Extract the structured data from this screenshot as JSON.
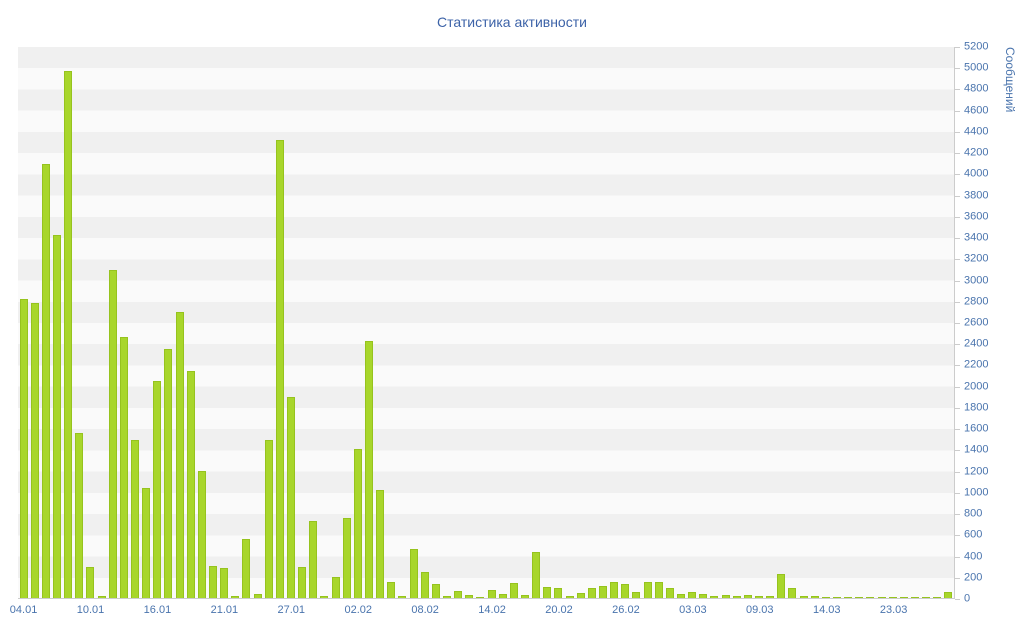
{
  "title": "Статистика активности",
  "colors": {
    "bar_fill": "#a8d62b",
    "bar_border": "#96c31e",
    "tick_label": "#4a74ad",
    "title_color": "#3d63a8",
    "band_dark": "#f0f0f0",
    "band_light": "#fafafa",
    "axis_line": "#cccccc"
  },
  "chart_data": {
    "type": "bar",
    "title": "Статистика активности",
    "xlabel": "",
    "ylabel": "Сообщений",
    "ylim": [
      0,
      5200
    ],
    "y_tick_step": 200,
    "grid": "horizontal-bands",
    "legend": "none",
    "x_ticks": [
      {
        "index": 0,
        "label": "04.01"
      },
      {
        "index": 6,
        "label": "10.01"
      },
      {
        "index": 12,
        "label": "16.01"
      },
      {
        "index": 18,
        "label": "21.01"
      },
      {
        "index": 24,
        "label": "27.01"
      },
      {
        "index": 30,
        "label": "02.02"
      },
      {
        "index": 36,
        "label": "08.02"
      },
      {
        "index": 42,
        "label": "14.02"
      },
      {
        "index": 48,
        "label": "20.02"
      },
      {
        "index": 54,
        "label": "26.02"
      },
      {
        "index": 60,
        "label": "03.03"
      },
      {
        "index": 66,
        "label": "09.03"
      },
      {
        "index": 72,
        "label": "14.03"
      },
      {
        "index": 78,
        "label": "23.03"
      }
    ],
    "values": [
      2820,
      2780,
      4100,
      3430,
      4970,
      1560,
      290,
      15,
      3100,
      2460,
      1490,
      1040,
      2050,
      2350,
      2700,
      2140,
      1200,
      300,
      285,
      15,
      560,
      40,
      1490,
      4320,
      1895,
      290,
      730,
      15,
      200,
      755,
      1410,
      2430,
      1020,
      155,
      15,
      460,
      250,
      130,
      15,
      70,
      30,
      10,
      80,
      40,
      140,
      25,
      430,
      100,
      95,
      20,
      45,
      90,
      110,
      150,
      130,
      60,
      150,
      155,
      90,
      35,
      55,
      40,
      20,
      30,
      15,
      25,
      20,
      15,
      230,
      90,
      20,
      15,
      10,
      8,
      12,
      6,
      10,
      5,
      8,
      5,
      6,
      4,
      5,
      60
    ]
  }
}
